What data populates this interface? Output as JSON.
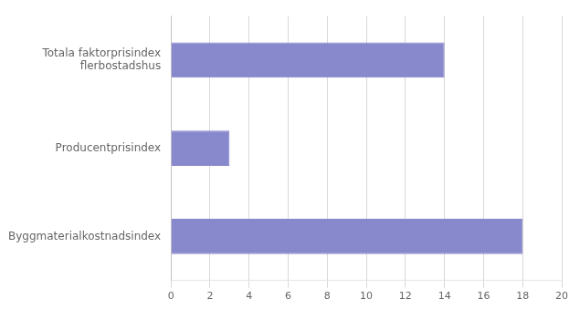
{
  "chart_data": {
    "type": "bar",
    "orientation": "horizontal",
    "categories": [
      "Byggmaterialkostnadsindex",
      "Producentprisindex",
      "Totala faktorprisindex\nflerbostadshus"
    ],
    "values": [
      18,
      3,
      14
    ],
    "color": "#8888cc",
    "xlim": [
      0,
      20
    ],
    "xticks": [
      0,
      2,
      4,
      6,
      8,
      10,
      12,
      14,
      16,
      18,
      20
    ],
    "grid": true
  }
}
